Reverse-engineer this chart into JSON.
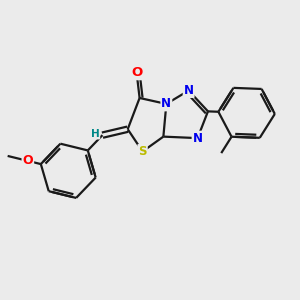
{
  "background_color": "#ebebeb",
  "bond_color": "#1a1a1a",
  "atom_colors": {
    "O": "#ff0000",
    "N": "#0000ee",
    "S": "#bbbb00",
    "H": "#008888",
    "C": "#1a1a1a"
  },
  "line_width": 1.6,
  "font_size": 8.5
}
